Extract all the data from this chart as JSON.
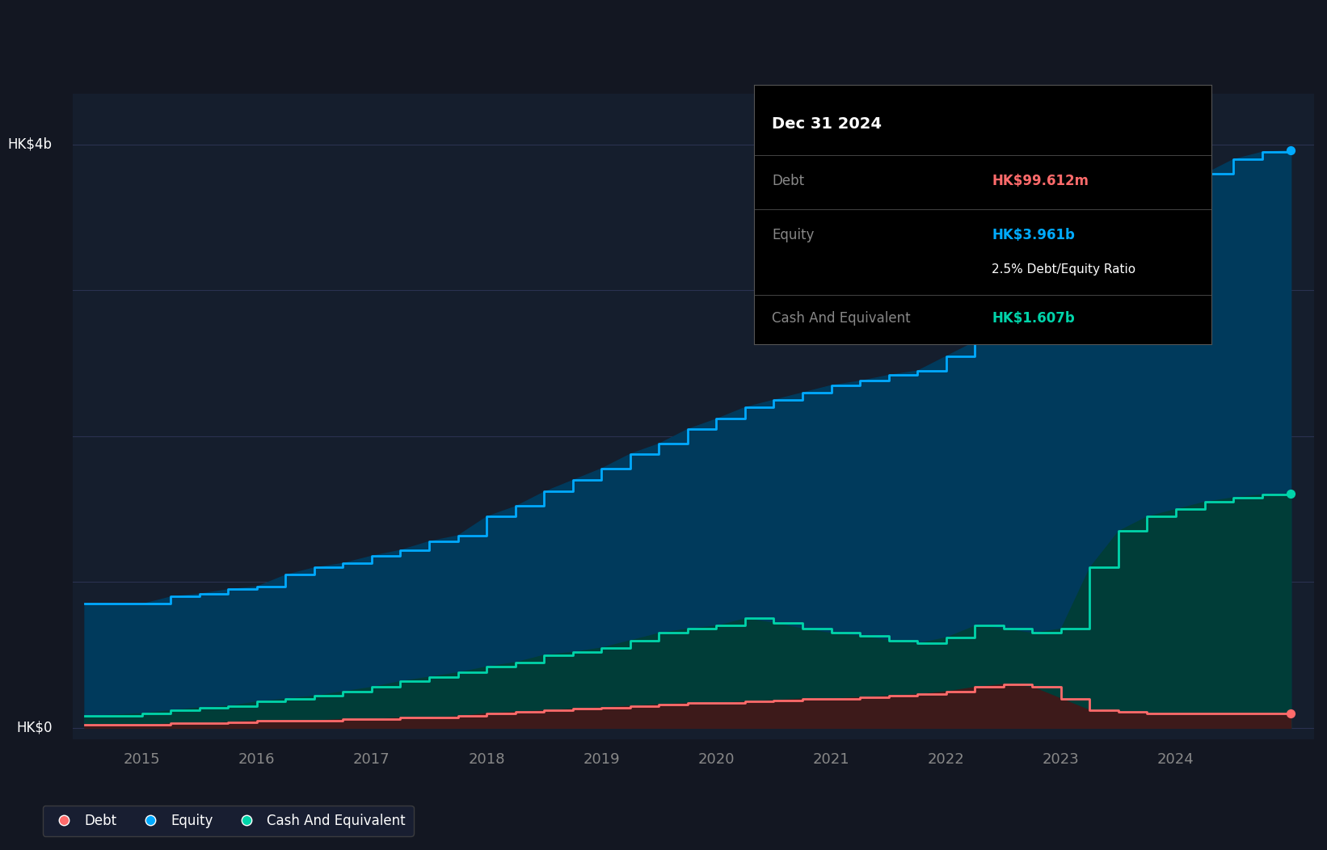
{
  "bg_color": "#131722",
  "plot_bg_color": "#151e2d",
  "grid_color": "#2a3150",
  "ylabel_hk4b": "HK$4b",
  "ylabel_hk0": "HK$0",
  "equity_color": "#00aaff",
  "cash_color": "#00d4aa",
  "debt_color": "#ff6b6b",
  "equity_fill": "#003a5c",
  "cash_fill": "#003d38",
  "debt_fill": "#3d1a1a",
  "tooltip_title": "Dec 31 2024",
  "tooltip_debt_label": "Debt",
  "tooltip_debt_value": "HK$99.612m",
  "tooltip_equity_label": "Equity",
  "tooltip_equity_value": "HK$3.961b",
  "tooltip_ratio": "2.5% Debt/Equity Ratio",
  "tooltip_cash_label": "Cash And Equivalent",
  "tooltip_cash_value": "HK$1.607b",
  "years": [
    2014.5,
    2015.0,
    2015.25,
    2015.5,
    2015.75,
    2016.0,
    2016.25,
    2016.5,
    2016.75,
    2017.0,
    2017.25,
    2017.5,
    2017.75,
    2018.0,
    2018.25,
    2018.5,
    2018.75,
    2019.0,
    2019.25,
    2019.5,
    2019.75,
    2020.0,
    2020.25,
    2020.5,
    2020.75,
    2021.0,
    2021.25,
    2021.5,
    2021.75,
    2022.0,
    2022.25,
    2022.5,
    2022.75,
    2023.0,
    2023.25,
    2023.5,
    2023.75,
    2024.0,
    2024.25,
    2024.5,
    2024.75,
    2025.0
  ],
  "equity": [
    0.85,
    0.85,
    0.9,
    0.92,
    0.95,
    0.97,
    1.05,
    1.1,
    1.13,
    1.18,
    1.22,
    1.28,
    1.32,
    1.45,
    1.52,
    1.62,
    1.7,
    1.78,
    1.88,
    1.95,
    2.05,
    2.12,
    2.2,
    2.25,
    2.3,
    2.35,
    2.38,
    2.42,
    2.45,
    2.55,
    2.65,
    2.7,
    2.75,
    2.8,
    3.15,
    3.35,
    3.5,
    3.65,
    3.8,
    3.9,
    3.95,
    3.961
  ],
  "cash": [
    0.08,
    0.1,
    0.12,
    0.14,
    0.15,
    0.18,
    0.2,
    0.22,
    0.25,
    0.28,
    0.32,
    0.35,
    0.38,
    0.42,
    0.45,
    0.5,
    0.52,
    0.55,
    0.6,
    0.65,
    0.68,
    0.7,
    0.75,
    0.72,
    0.68,
    0.65,
    0.63,
    0.6,
    0.58,
    0.62,
    0.7,
    0.68,
    0.65,
    0.68,
    1.1,
    1.35,
    1.45,
    1.5,
    1.55,
    1.58,
    1.6,
    1.607
  ],
  "debt": [
    0.02,
    0.02,
    0.03,
    0.03,
    0.04,
    0.05,
    0.05,
    0.05,
    0.06,
    0.06,
    0.07,
    0.07,
    0.08,
    0.1,
    0.11,
    0.12,
    0.13,
    0.14,
    0.15,
    0.16,
    0.17,
    0.17,
    0.18,
    0.19,
    0.2,
    0.2,
    0.21,
    0.22,
    0.23,
    0.25,
    0.28,
    0.3,
    0.28,
    0.2,
    0.12,
    0.11,
    0.1,
    0.1,
    0.1,
    0.1,
    0.1,
    0.0996
  ],
  "xlim": [
    2014.4,
    2025.2
  ],
  "ylim": [
    -0.08,
    4.35
  ],
  "xticks": [
    2015,
    2016,
    2017,
    2018,
    2019,
    2020,
    2021,
    2022,
    2023,
    2024
  ],
  "ytick_positions": [
    0.0,
    1.0,
    2.0,
    3.0,
    4.0
  ],
  "hk4b_y": 4.0,
  "hk0_y": 0.0
}
